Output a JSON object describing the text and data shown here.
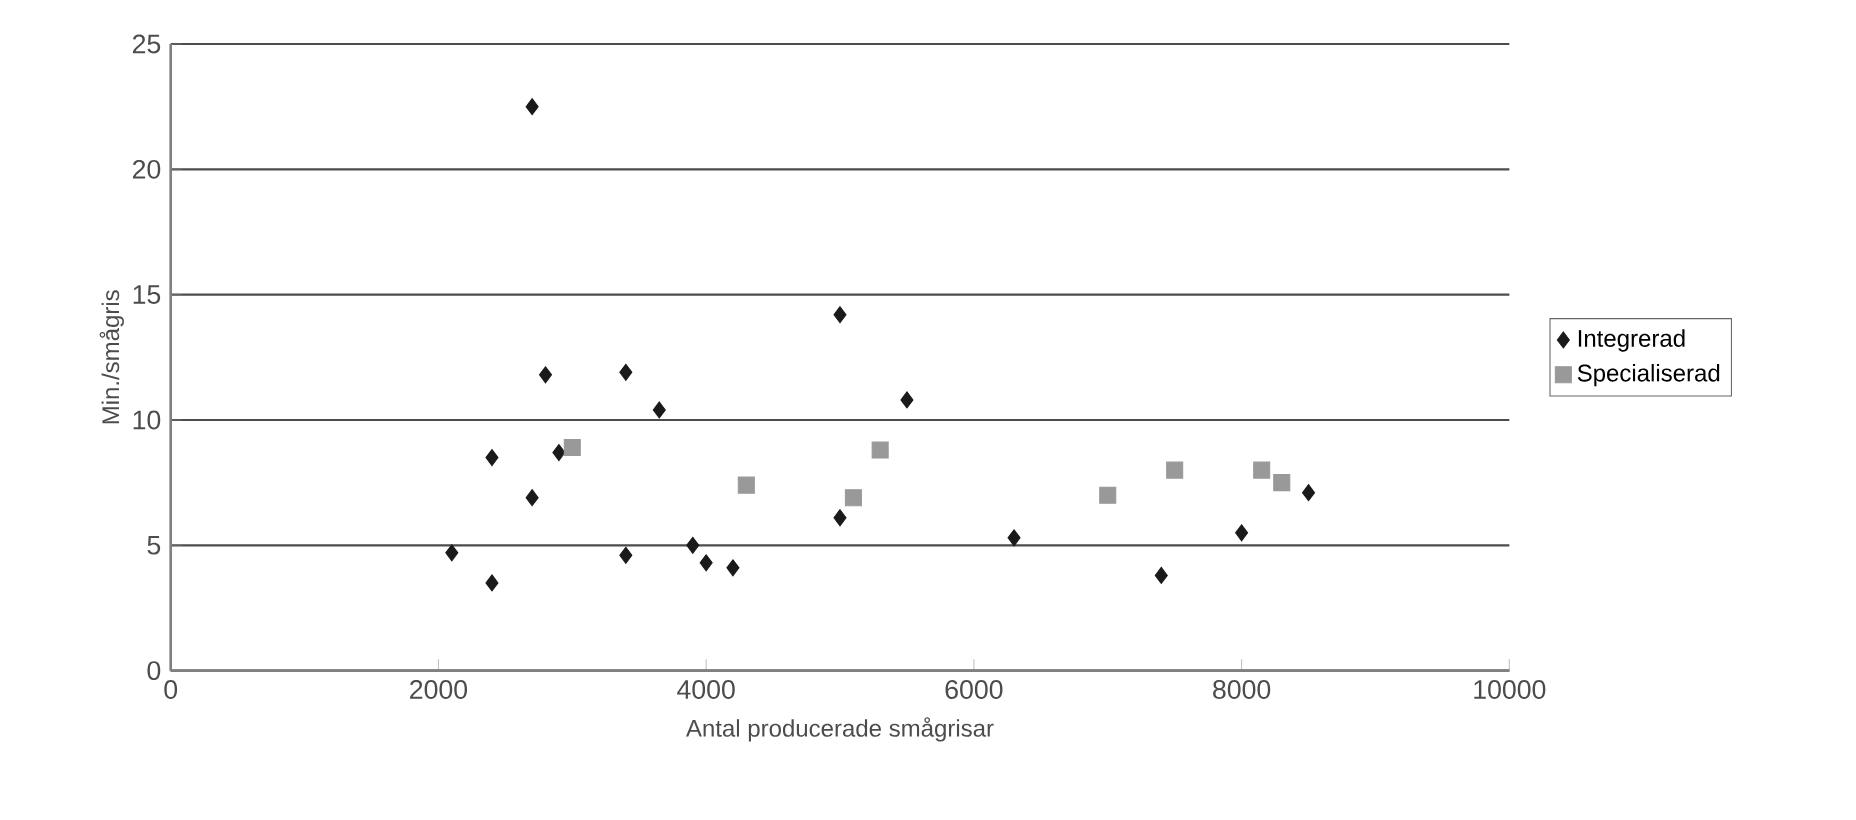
{
  "chart_data": {
    "type": "scatter",
    "xlabel": "Antal producerade smågrisar",
    "ylabel": "Min./smågris",
    "xlim": [
      0,
      10000
    ],
    "xticks": [
      0,
      2000,
      4000,
      6000,
      8000,
      10000
    ],
    "ylim": [
      0,
      25
    ],
    "yticks": [
      0,
      5,
      10,
      15,
      20,
      25
    ],
    "grid": "y",
    "legend": "right",
    "series": [
      {
        "name": "Integrerad",
        "color": "#1a1a1a",
        "marker": "diamond",
        "x": [
          2100,
          2400,
          2400,
          2700,
          2700,
          2800,
          2900,
          3400,
          3400,
          3650,
          3900,
          4000,
          4200,
          5000,
          5000,
          5500,
          6300,
          7400,
          8000,
          8500
        ],
        "values": [
          4.7,
          3.5,
          8.5,
          22.5,
          6.9,
          11.8,
          8.7,
          4.6,
          11.9,
          10.4,
          5.0,
          4.3,
          4.1,
          14.2,
          6.1,
          10.8,
          5.3,
          3.8,
          5.5,
          7.1
        ]
      },
      {
        "name": "Specialiserad",
        "color": "#999999",
        "marker": "square",
        "x": [
          3000,
          4300,
          5100,
          5300,
          7000,
          7500,
          8150,
          8300
        ],
        "values": [
          8.9,
          7.4,
          6.9,
          8.8,
          7.0,
          8.0,
          8.0,
          7.5
        ]
      }
    ]
  }
}
